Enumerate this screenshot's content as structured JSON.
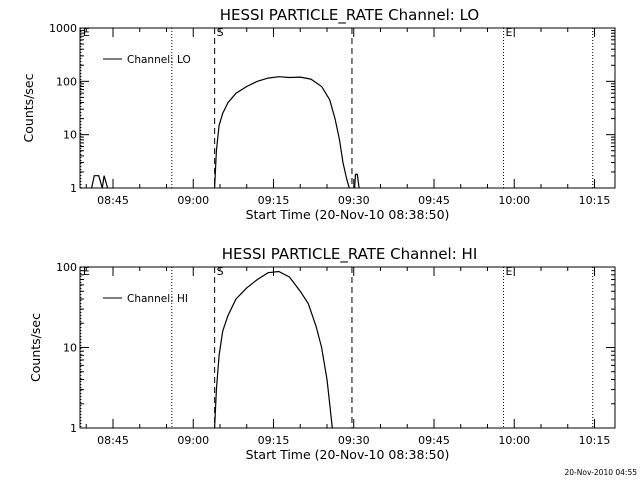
{
  "stamp": "20-Nov-2010 04:55",
  "chart_data": [
    {
      "type": "line",
      "title": "HESSI PARTICLE_RATE Channel: LO",
      "xlabel": "Start Time (20-Nov-10 08:38:50)",
      "ylabel": "Counts/sec",
      "yscale": "log",
      "ylim": [
        1,
        1000
      ],
      "xlim": [
        "08:38:50",
        "10:18:50"
      ],
      "xticks": [
        "08:45",
        "09:00",
        "09:15",
        "09:30",
        "09:45",
        "10:00",
        "10:15"
      ],
      "yticks": [
        "1",
        "10",
        "100",
        "1000"
      ],
      "legend": "top-left",
      "series": [
        {
          "name": "Channel: LO",
          "x": [
            "08:41:00",
            "08:41:30",
            "08:42:20",
            "08:43:00",
            "08:43:20",
            "08:44:00",
            "09:04:00",
            "09:04:20",
            "09:04:50",
            "09:05:30",
            "09:06:30",
            "09:08:00",
            "09:10:00",
            "09:12:00",
            "09:14:00",
            "09:16:00",
            "09:18:00",
            "09:20:00",
            "09:22:00",
            "09:24:00",
            "09:25:30",
            "09:26:30",
            "09:27:20",
            "09:28:00",
            "09:28:40",
            "09:29:10",
            "09:29:20",
            "09:30:10",
            "09:30:20",
            "09:30:40",
            "09:31:00"
          ],
          "y": [
            1,
            1.7,
            1.7,
            1,
            1.7,
            1,
            1,
            5,
            15,
            25,
            40,
            60,
            80,
            100,
            115,
            122,
            118,
            120,
            110,
            80,
            45,
            20,
            8,
            3,
            1.5,
            1,
            1,
            1,
            1.8,
            1.8,
            1
          ],
          "segments": [
            [
              0,
              5
            ],
            [
              6,
              26
            ],
            [
              27,
              30
            ]
          ]
        }
      ],
      "markers": [
        {
          "label": "E",
          "time": "08:39:00",
          "style": "dotted"
        },
        {
          "label": "",
          "time": "08:56:00",
          "style": "dotted"
        },
        {
          "label": "S",
          "time": "09:04:00",
          "style": "dashed"
        },
        {
          "label": "",
          "time": "09:29:40",
          "style": "dashed"
        },
        {
          "label": "E",
          "time": "09:58:00",
          "style": "dotted"
        },
        {
          "label": "",
          "time": "10:14:40",
          "style": "dotted"
        }
      ]
    },
    {
      "type": "line",
      "title": "HESSI PARTICLE_RATE Channel: HI",
      "xlabel": "Start Time (20-Nov-10 08:38:50)",
      "ylabel": "Counts/sec",
      "yscale": "log",
      "ylim": [
        1,
        100
      ],
      "xlim": [
        "08:38:50",
        "10:18:50"
      ],
      "xticks": [
        "08:45",
        "09:00",
        "09:15",
        "09:30",
        "09:45",
        "10:00",
        "10:15"
      ],
      "yticks": [
        "1",
        "10",
        "100"
      ],
      "legend": "top-left",
      "series": [
        {
          "name": "Channel: HI",
          "x": [
            "09:04:00",
            "09:04:20",
            "09:04:50",
            "09:05:30",
            "09:06:30",
            "09:08:00",
            "09:10:00",
            "09:12:00",
            "09:14:00",
            "09:16:00",
            "09:18:00",
            "09:20:00",
            "09:21:30",
            "09:23:00",
            "09:24:00",
            "09:25:00",
            "09:25:30",
            "09:26:00"
          ],
          "y": [
            1,
            3,
            8,
            16,
            25,
            40,
            55,
            70,
            85,
            88,
            75,
            50,
            35,
            18,
            10,
            4,
            2,
            1
          ],
          "segments": [
            [
              0,
              17
            ]
          ]
        }
      ],
      "markers": [
        {
          "label": "E",
          "time": "08:39:00",
          "style": "dotted"
        },
        {
          "label": "",
          "time": "08:56:00",
          "style": "dotted"
        },
        {
          "label": "S",
          "time": "09:04:00",
          "style": "dashed"
        },
        {
          "label": "",
          "time": "09:29:40",
          "style": "dashed"
        },
        {
          "label": "E",
          "time": "09:58:00",
          "style": "dotted"
        },
        {
          "label": "",
          "time": "10:14:40",
          "style": "dotted"
        }
      ]
    }
  ]
}
